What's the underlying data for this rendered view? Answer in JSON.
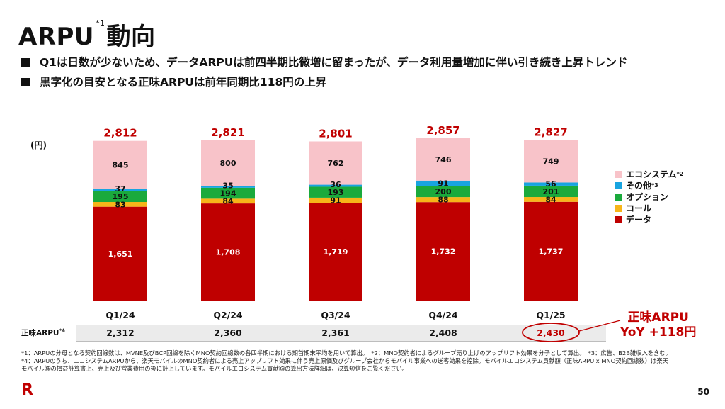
{
  "title": {
    "main": "ARPU",
    "sup": "*1",
    "suffix": "動向"
  },
  "bullets": [
    "Q1は日数が少ないため、データARPUは前四半期比微増に留まったが、データ利用量増加に伴い引き続き上昇トレンド",
    "黒字化の目安となる正味ARPUは前年同期比118円の上昇"
  ],
  "unit_label": "(円)",
  "legend": [
    {
      "label": "エコシステム",
      "sup": "*2",
      "color": "#f8c3c9"
    },
    {
      "label": "その他",
      "sup": "*3",
      "color": "#18a4e0"
    },
    {
      "label": "オプション",
      "sup": "",
      "color": "#1aaa3c"
    },
    {
      "label": "コール",
      "sup": "",
      "color": "#f7b519"
    },
    {
      "label": "データ",
      "sup": "",
      "color": "#bf0000"
    }
  ],
  "net_arpu": {
    "label": "正味ARPU",
    "sup": "*4",
    "values": [
      "2,312",
      "2,360",
      "2,361",
      "2,408",
      "2,430"
    ]
  },
  "callout": {
    "line1": "正味ARPU",
    "line2": "YoY +118円"
  },
  "footnotes": [
    "*1：ARPUの分母となる契約回線数は、MVNE及びBCP回線を除くMNO契約回線数の各四半期における期首期末平均を用いて算出。　*2：MNO契約者によるグループ売り上げのアップリフト効果を分子として算出。　*3：広告、B2B雑収入を含む。",
    "*4：ARPUのうち、エコシステムARPUから、楽天モバイルのMNO契約者による売上アップリフト効果に伴う売上原価及びグループ会社からモバイル事業への送客効果を控除。モバイルエコシステム貢献額（正味ARPU x MNO契約回線数）は楽天",
    "モバイル㈱の損益計算書上、売上及び営業費用の後に計上しています。モバイルエコシステム貢献額の算出方法詳細は、決算短信をご覧ください。"
  ],
  "logo_text": "R",
  "page_number": "50",
  "chart_data": {
    "type": "bar",
    "stacked": true,
    "categories": [
      "Q1/24",
      "Q2/24",
      "Q3/24",
      "Q4/24",
      "Q1/25"
    ],
    "series": [
      {
        "name": "データ",
        "values": [
          1651,
          1708,
          1719,
          1732,
          1737
        ],
        "labels": [
          "1,651",
          "1,708",
          "1,719",
          "1,732",
          "1,737"
        ],
        "color": "#bf0000",
        "label_color": "#ffffff"
      },
      {
        "name": "コール",
        "values": [
          83,
          84,
          91,
          88,
          84
        ],
        "labels": [
          "83",
          "84",
          "91",
          "88",
          "84"
        ],
        "color": "#f7b519",
        "label_color": "#111111"
      },
      {
        "name": "オプション",
        "values": [
          195,
          194,
          193,
          200,
          201
        ],
        "labels": [
          "195",
          "194",
          "193",
          "200",
          "201"
        ],
        "color": "#1aaa3c",
        "label_color": "#111111"
      },
      {
        "name": "その他",
        "values": [
          37,
          35,
          36,
          91,
          56
        ],
        "labels": [
          "37",
          "35",
          "36",
          "91",
          "56"
        ],
        "color": "#18a4e0",
        "label_color": "#111111"
      },
      {
        "name": "エコシステム",
        "values": [
          845,
          800,
          762,
          746,
          749
        ],
        "labels": [
          "845",
          "800",
          "762",
          "746",
          "749"
        ],
        "color": "#f8c3c9",
        "label_color": "#111111"
      }
    ],
    "totals": [
      "2,812",
      "2,821",
      "2,801",
      "2,857",
      "2,827"
    ],
    "total_values": [
      2812,
      2821,
      2801,
      2857,
      2827
    ],
    "ylabel": "(円)",
    "ylim": [
      0,
      2857
    ],
    "grid": false,
    "legend_position": "right"
  }
}
